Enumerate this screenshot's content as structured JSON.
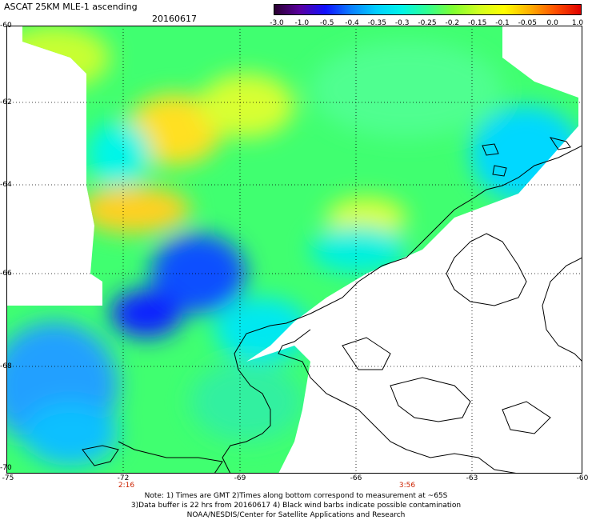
{
  "header": {
    "title": "ASCAT 25KM MLE-1 ascending",
    "date": "20160617"
  },
  "colorbar": {
    "ticks": [
      "-3.0",
      "-1.0",
      "-0.5",
      "-0.4",
      "-0.35",
      "-0.3",
      "-0.25",
      "-0.2",
      "-0.15",
      "-0.1",
      "-0.05",
      "0.0",
      "1.0"
    ],
    "colors": [
      "#2a0030",
      "#5a00a0",
      "#1010ff",
      "#0a7fff",
      "#00cfff",
      "#00f5e8",
      "#30ff90",
      "#80ff30",
      "#d0ff20",
      "#ffff00",
      "#ffb000",
      "#ff5000",
      "#e00000"
    ]
  },
  "map": {
    "lat_labels": [
      "-60",
      "-62",
      "-64",
      "-66",
      "-68",
      "-70"
    ],
    "lon_labels": [
      "-75",
      "-72",
      "-69",
      "-66",
      "-63",
      "-60"
    ],
    "time_labels": [
      "2:16",
      "3:56"
    ]
  },
  "notes": {
    "line1": "Note: 1) Times are GMT 2)Times along bottom correspond to measurement at ~65S",
    "line2": "3)Data buffer is 22 hrs from 20160617 4) Black wind barbs indicate possible contamination",
    "line3": "NOAA/NESDIS/Center for Satellite Applications and Research"
  }
}
